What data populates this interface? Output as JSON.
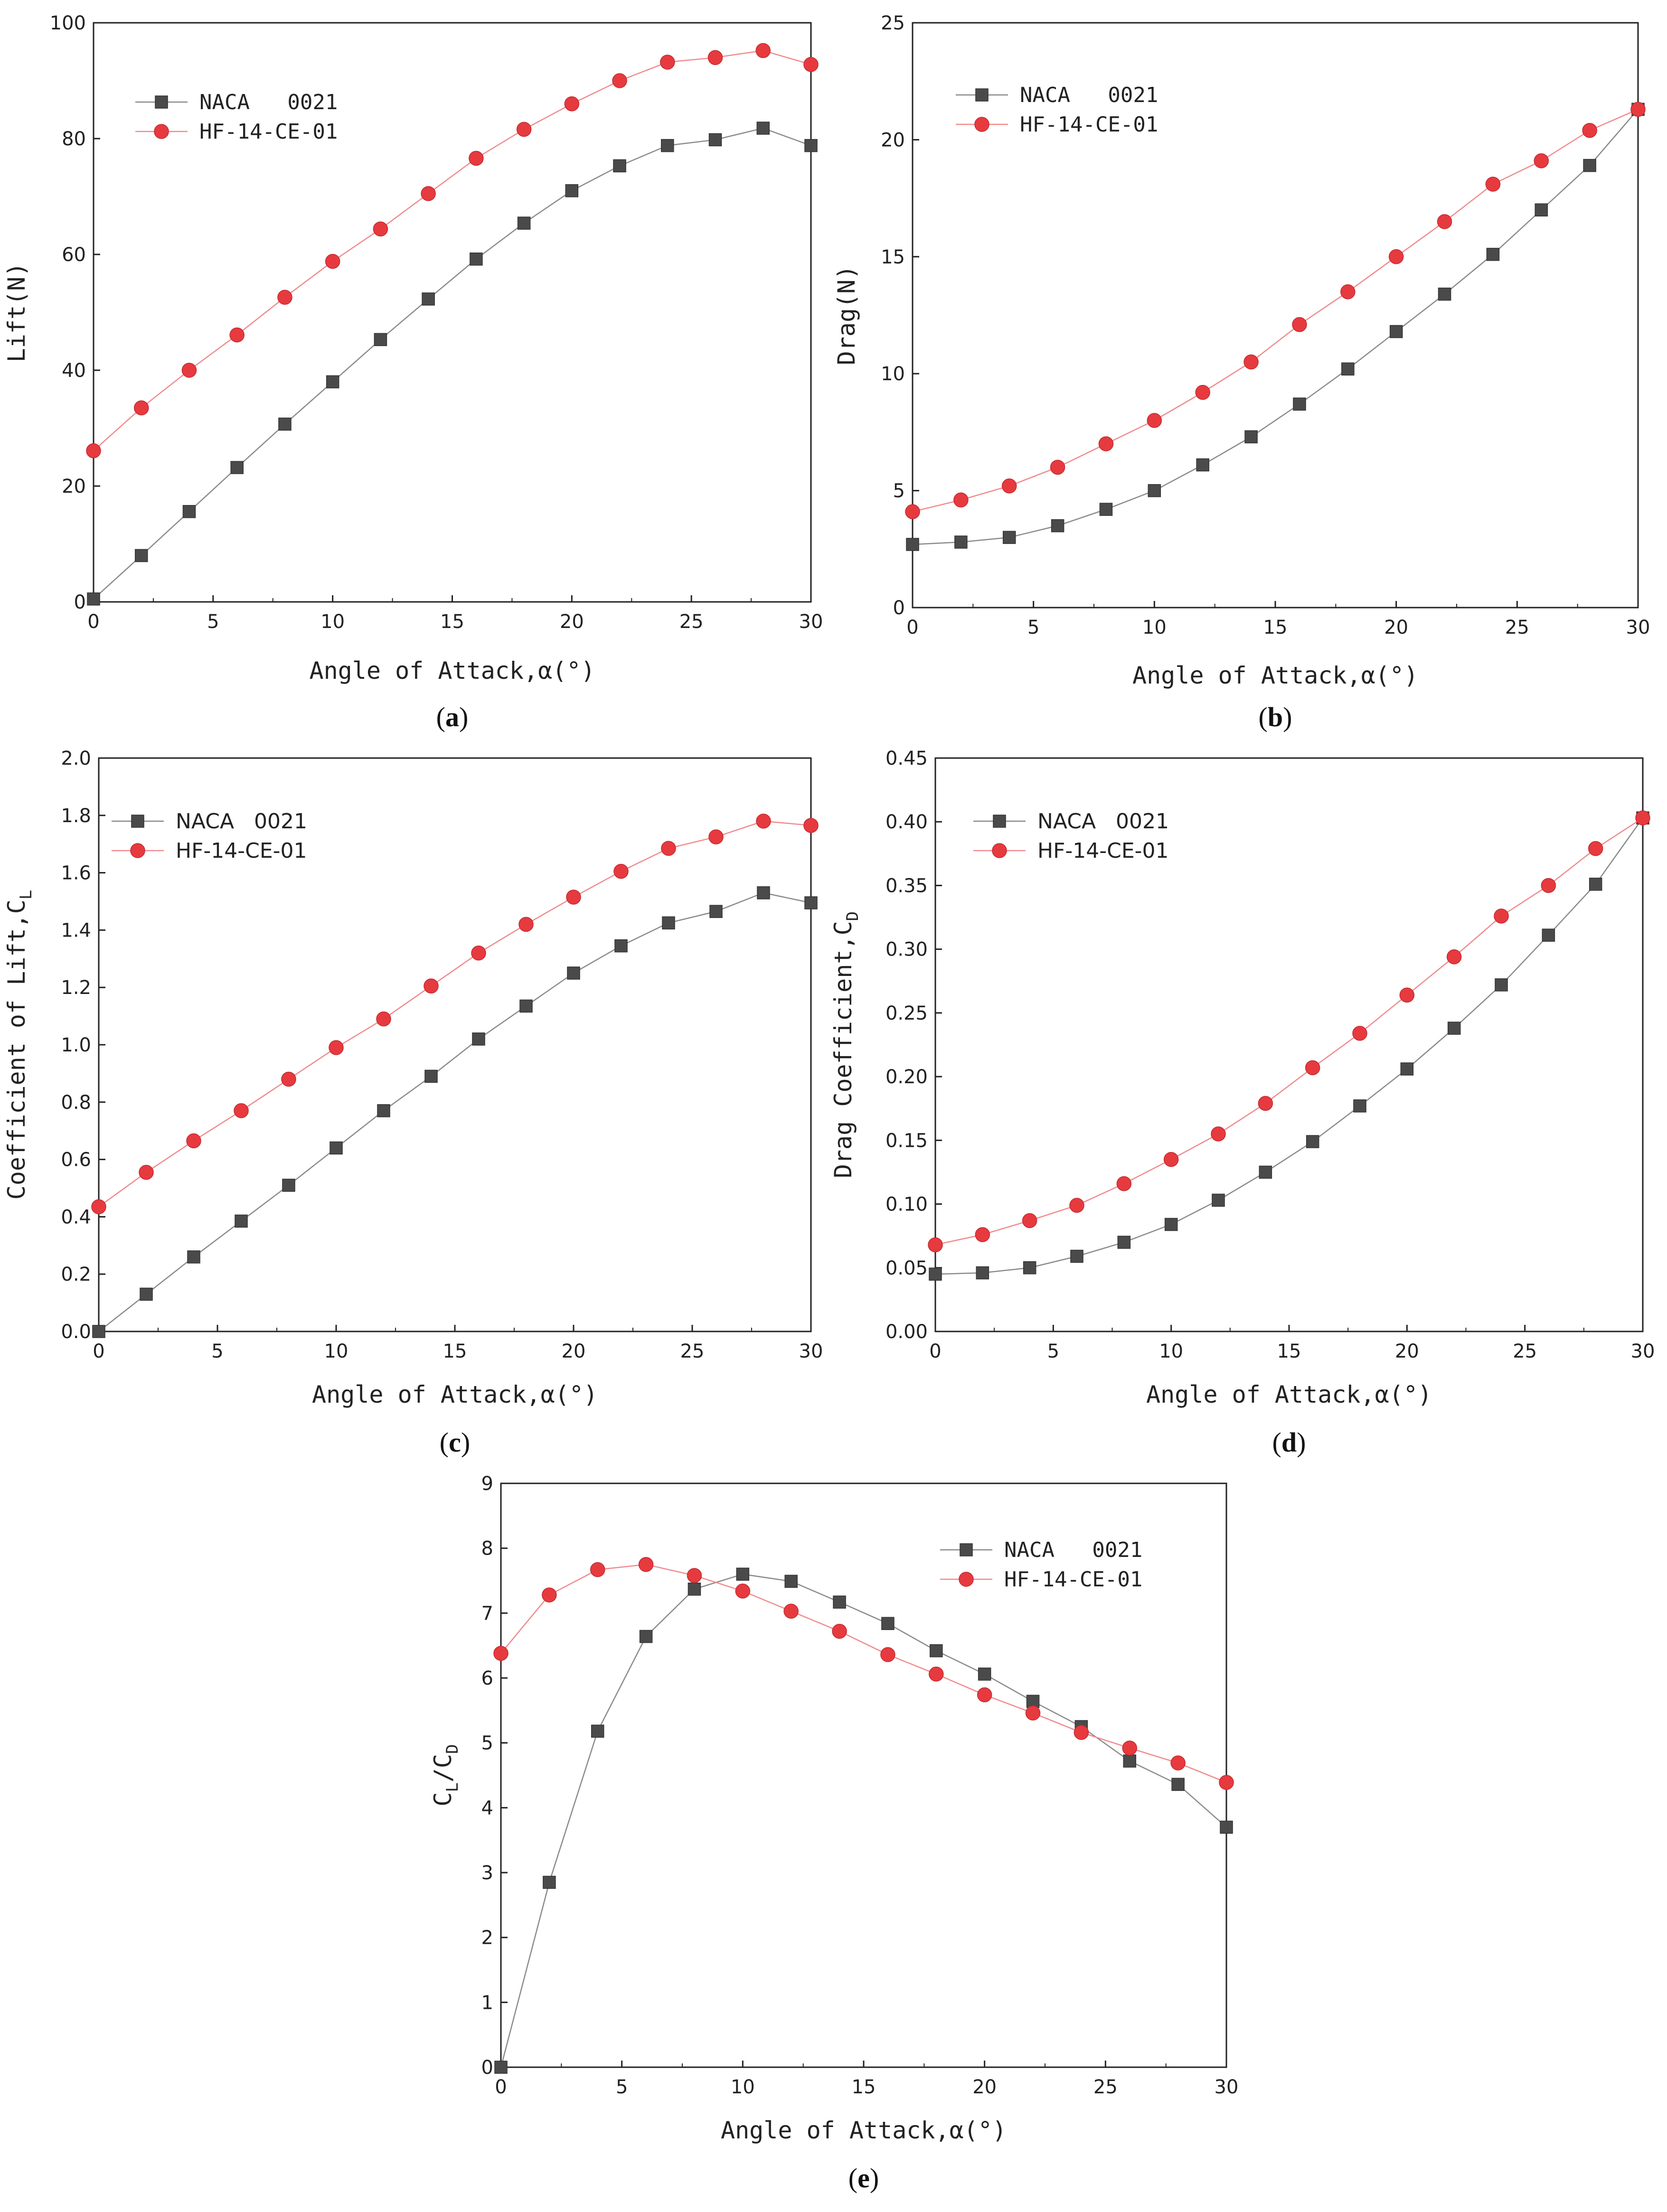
{
  "colors": {
    "naca": "#4a4a4a",
    "hf": "#e63a3f",
    "axis": "#222222"
  },
  "chart_data": [
    {
      "type": "line",
      "label_open": "(",
      "label_letter": "a",
      "label_close": ")",
      "xlabel": "Angle of Attack,α(°)",
      "ylabel": "Lift(N)",
      "xlim": [
        0,
        30
      ],
      "ylim": [
        0,
        100
      ],
      "xticks": [
        "0",
        "5",
        "10",
        "15",
        "20",
        "25",
        "30"
      ],
      "yticks": [
        "0",
        "20",
        "40",
        "60",
        "80",
        "100"
      ],
      "legend_position": "top-left",
      "x": [
        0,
        2,
        4,
        6,
        8,
        10,
        12,
        14,
        16,
        18,
        20,
        22,
        24,
        26,
        28,
        30
      ],
      "series": [
        {
          "name": "NACA   0021",
          "marker": "square",
          "values": [
            0.5,
            8,
            15.6,
            23.2,
            30.7,
            38,
            45.3,
            52.3,
            59.2,
            65.4,
            71,
            75.3,
            78.8,
            79.8,
            81.8,
            78.8
          ]
        },
        {
          "name": "HF-14-CE-01",
          "marker": "circle",
          "values": [
            26.1,
            33.5,
            40,
            46.1,
            52.6,
            58.8,
            64.4,
            70.5,
            76.6,
            81.6,
            86,
            90,
            93.2,
            94,
            95.2,
            92.8
          ]
        }
      ]
    },
    {
      "type": "line",
      "label_open": "(",
      "label_letter": "b",
      "label_close": ")",
      "xlabel": "Angle of Attack,α(°)",
      "ylabel": "Drag(N)",
      "xlim": [
        0,
        30
      ],
      "ylim": [
        0,
        25
      ],
      "xticks": [
        "0",
        "5",
        "10",
        "15",
        "20",
        "25",
        "30"
      ],
      "yticks": [
        "0",
        "5",
        "10",
        "15",
        "20",
        "25"
      ],
      "legend_position": "top-left",
      "x": [
        0,
        2,
        4,
        6,
        8,
        10,
        12,
        14,
        16,
        18,
        20,
        22,
        24,
        26,
        28,
        30
      ],
      "series": [
        {
          "name": "NACA   0021",
          "marker": "square",
          "values": [
            2.7,
            2.8,
            3.0,
            3.5,
            4.2,
            5.0,
            6.1,
            7.3,
            8.7,
            10.2,
            11.8,
            13.4,
            15.1,
            17.0,
            18.9,
            21.3
          ]
        },
        {
          "name": "HF-14-CE-01",
          "marker": "circle",
          "values": [
            4.1,
            4.6,
            5.2,
            6.0,
            7.0,
            8.0,
            9.2,
            10.5,
            12.1,
            13.5,
            15.0,
            16.5,
            18.1,
            19.1,
            20.4,
            21.3
          ]
        }
      ]
    },
    {
      "type": "line",
      "label_open": "(",
      "label_letter": "c",
      "label_close": ")",
      "xlabel": "Angle of Attack,α(°)",
      "ylabel": "Coefficient of Lift,C",
      "ylabel_sub": "L",
      "xlim": [
        0,
        30
      ],
      "ylim": [
        0,
        2.0
      ],
      "xticks": [
        "0",
        "5",
        "10",
        "15",
        "20",
        "25",
        "30"
      ],
      "yticks": [
        "0.0",
        "0.2",
        "0.4",
        "0.6",
        "0.8",
        "1.0",
        "1.2",
        "1.4",
        "1.6",
        "1.8",
        "2.0"
      ],
      "legend_position": "top-left",
      "x": [
        0,
        2,
        4,
        6,
        8,
        10,
        12,
        14,
        16,
        18,
        20,
        22,
        24,
        26,
        28,
        30
      ],
      "series": [
        {
          "name": "NACA   0021",
          "marker": "square",
          "values": [
            0.0,
            0.13,
            0.26,
            0.385,
            0.51,
            0.64,
            0.77,
            0.89,
            1.02,
            1.135,
            1.25,
            1.345,
            1.425,
            1.465,
            1.53,
            1.495
          ]
        },
        {
          "name": "HF-14-CE-01",
          "marker": "circle",
          "values": [
            0.435,
            0.555,
            0.665,
            0.77,
            0.88,
            0.99,
            1.09,
            1.205,
            1.32,
            1.42,
            1.515,
            1.605,
            1.685,
            1.725,
            1.78,
            1.765
          ]
        }
      ]
    },
    {
      "type": "line",
      "label_open": "(",
      "label_letter": "d",
      "label_close": ")",
      "xlabel": "Angle of Attack,α(°)",
      "ylabel": "Drag Coefficient,C",
      "ylabel_sub": "D",
      "xlim": [
        0,
        30
      ],
      "ylim": [
        0,
        0.45
      ],
      "xticks": [
        "0",
        "5",
        "10",
        "15",
        "20",
        "25",
        "30"
      ],
      "yticks": [
        "0.00",
        "0.05",
        "0.10",
        "0.15",
        "0.20",
        "0.25",
        "0.30",
        "0.35",
        "0.40",
        "0.45"
      ],
      "legend_position": "top-left",
      "x": [
        0,
        2,
        4,
        6,
        8,
        10,
        12,
        14,
        16,
        18,
        20,
        22,
        24,
        26,
        28,
        30
      ],
      "series": [
        {
          "name": "NACA   0021",
          "marker": "square",
          "values": [
            0.045,
            0.046,
            0.05,
            0.059,
            0.07,
            0.084,
            0.103,
            0.125,
            0.149,
            0.177,
            0.206,
            0.238,
            0.272,
            0.311,
            0.351,
            0.403
          ]
        },
        {
          "name": "HF-14-CE-01",
          "marker": "circle",
          "values": [
            0.068,
            0.076,
            0.087,
            0.099,
            0.116,
            0.135,
            0.155,
            0.179,
            0.207,
            0.234,
            0.264,
            0.294,
            0.326,
            0.35,
            0.379,
            0.403
          ]
        }
      ]
    },
    {
      "type": "line",
      "label_open": "(",
      "label_letter": "e",
      "label_close": ")",
      "xlabel": "Angle of Attack,α(°)",
      "ylabel_parts": [
        "C",
        "L",
        "/C",
        "D"
      ],
      "xlim": [
        0,
        30
      ],
      "ylim": [
        0,
        9
      ],
      "xticks": [
        "0",
        "5",
        "10",
        "15",
        "20",
        "25",
        "30"
      ],
      "yticks": [
        "0",
        "1",
        "2",
        "3",
        "4",
        "5",
        "6",
        "7",
        "8",
        "9"
      ],
      "legend_position": "top-right",
      "x": [
        0,
        2,
        4,
        6,
        8,
        10,
        12,
        14,
        16,
        18,
        20,
        22,
        24,
        26,
        28,
        30
      ],
      "series": [
        {
          "name": "NACA   0021",
          "marker": "square",
          "values": [
            0.0,
            2.85,
            5.18,
            6.64,
            7.37,
            7.6,
            7.49,
            7.17,
            6.84,
            6.42,
            6.06,
            5.64,
            5.25,
            4.72,
            4.36,
            3.7
          ]
        },
        {
          "name": "HF-14-CE-01",
          "marker": "circle",
          "values": [
            6.38,
            7.28,
            7.67,
            7.75,
            7.58,
            7.34,
            7.03,
            6.72,
            6.36,
            6.06,
            5.74,
            5.46,
            5.16,
            4.92,
            4.69,
            4.39
          ]
        }
      ]
    }
  ]
}
